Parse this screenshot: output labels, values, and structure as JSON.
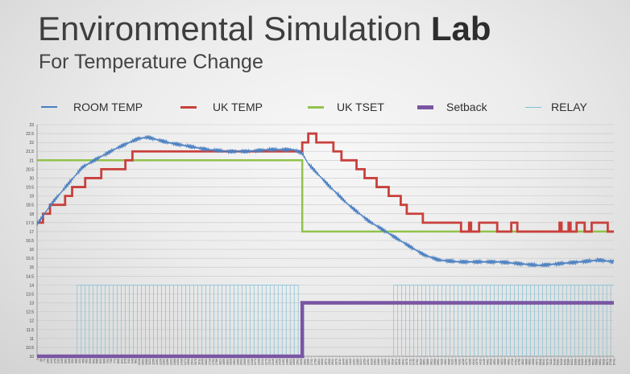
{
  "header": {
    "title_main": "Environmental Simulation ",
    "title_bold": "Lab",
    "subtitle": "For Temperature Change"
  },
  "colors": {
    "room_temp": "#4a7fc1",
    "uk_temp": "#c8403c",
    "uk_tset": "#92c24b",
    "setback": "#7a55a3",
    "relay": "#7fbfd4",
    "grid": "#c7c7c7",
    "axis": "#8a8a8a",
    "tick_text": "#3a3a3a"
  },
  "legend": [
    {
      "label": "ROOM TEMP",
      "series": "room_temp"
    },
    {
      "label": "UK TEMP",
      "series": "uk_temp"
    },
    {
      "label": "UK TSET",
      "series": "uk_tset"
    },
    {
      "label": "Setback",
      "series": "setback"
    },
    {
      "label": "RELAY",
      "series": "relay"
    }
  ],
  "chart_data": {
    "type": "line",
    "title": "Environmental Simulation Lab",
    "subtitle": "For Temperature Change",
    "xlim": [
      1,
      5741
    ],
    "ylim": [
      10,
      23
    ],
    "grid": true,
    "legend_position": "top",
    "y_ticks": [
      "10",
      "10.5",
      "11",
      "11.5",
      "12",
      "12.5",
      "13",
      "13.5",
      "14",
      "14.5",
      "15",
      "15.5",
      "16",
      "16.5",
      "17",
      "17.5",
      "18",
      "18.5",
      "19",
      "19.5",
      "20",
      "20.5",
      "21",
      "21.5",
      "22",
      "22.5",
      "23"
    ],
    "x_ticks": [
      "1",
      "36",
      "71",
      "106",
      "141",
      "176",
      "211",
      "246",
      "281",
      "316",
      "351",
      "386",
      "421",
      "456",
      "491",
      "526",
      "561",
      "596",
      "631",
      "666",
      "701",
      "736",
      "771",
      "806",
      "841",
      "876",
      "911",
      "946",
      "981",
      "1016",
      "1051",
      "1086",
      "1121",
      "1156",
      "1191",
      "1226",
      "1261",
      "1296",
      "1331",
      "1366",
      "1401",
      "1436",
      "1471",
      "1506",
      "1541",
      "1576",
      "1611",
      "1646",
      "1681",
      "1716",
      "1751",
      "1786",
      "1821",
      "1856",
      "1891",
      "1926",
      "1961",
      "1996",
      "2031",
      "2066",
      "2101",
      "2136",
      "2171",
      "2206",
      "2241",
      "2276",
      "2311",
      "2346",
      "2381",
      "2416",
      "2451",
      "2486",
      "2521",
      "2556",
      "2591",
      "2626",
      "2661",
      "2696",
      "2731",
      "2766",
      "2801",
      "2836",
      "2871",
      "2906",
      "2941",
      "2976",
      "3011",
      "3046",
      "3081",
      "3116",
      "3151",
      "3186",
      "3221",
      "3256",
      "3291",
      "3326",
      "3361",
      "3396",
      "3431",
      "3466",
      "3501",
      "3536",
      "3571",
      "3606",
      "3641",
      "3676",
      "3711",
      "3746",
      "3781",
      "3816",
      "3851",
      "3886",
      "3921",
      "3956",
      "3991",
      "4026",
      "4061",
      "4096",
      "4131",
      "4166",
      "4201",
      "4236",
      "4271",
      "4306",
      "4341",
      "4376",
      "4411",
      "4446",
      "4481",
      "4516",
      "4551",
      "4586",
      "4621",
      "4656",
      "4691",
      "4726",
      "4761",
      "4796",
      "4831",
      "4866",
      "4901",
      "4936",
      "4971",
      "5006",
      "5041",
      "5076",
      "5111",
      "5146",
      "5181",
      "5216",
      "5251",
      "5286",
      "5321",
      "5356",
      "5391",
      "5426",
      "5461",
      "5496",
      "5531",
      "5566",
      "5601",
      "5636",
      "5671",
      "5706",
      "5741"
    ],
    "series": [
      {
        "name": "ROOM TEMP",
        "key": "room_temp",
        "style": "line",
        "noise": 0.12,
        "x": [
          1,
          50,
          150,
          300,
          450,
          600,
          800,
          1000,
          1100,
          1300,
          1500,
          1700,
          1900,
          2100,
          2300,
          2550,
          2640,
          2700,
          2900,
          3100,
          3300,
          3500,
          3700,
          3850,
          4000,
          4200,
          4400,
          4600,
          4800,
          5000,
          5200,
          5400,
          5600,
          5741
        ],
        "y": [
          17.4,
          17.8,
          18.6,
          19.6,
          20.6,
          21.1,
          21.7,
          22.2,
          22.3,
          22.0,
          21.8,
          21.6,
          21.5,
          21.5,
          21.6,
          21.6,
          21.4,
          20.8,
          19.6,
          18.5,
          17.6,
          16.9,
          16.2,
          15.7,
          15.4,
          15.3,
          15.3,
          15.3,
          15.2,
          15.1,
          15.2,
          15.3,
          15.4,
          15.3
        ]
      },
      {
        "name": "UK TEMP",
        "key": "uk_temp",
        "style": "step",
        "x": [
          1,
          60,
          130,
          200,
          280,
          350,
          480,
          640,
          700,
          880,
          950,
          1050,
          1120,
          2640,
          2700,
          2780,
          2950,
          3030,
          3180,
          3260,
          3380,
          3500,
          3620,
          3680,
          3750,
          3840,
          4200,
          4220,
          4300,
          4320,
          4400,
          4560,
          4580,
          4720,
          4780,
          4800,
          5200,
          5220,
          5290,
          5310,
          5370,
          5430,
          5450,
          5520,
          5530,
          5680,
          5741
        ],
        "y": [
          17.5,
          18,
          18.5,
          18.5,
          19,
          19.5,
          20,
          20.5,
          20.5,
          21,
          21.5,
          21.5,
          21.5,
          22,
          22.5,
          22,
          21.5,
          21,
          20.5,
          20,
          19.5,
          19,
          18.5,
          18,
          18,
          17.5,
          17.5,
          17,
          17.5,
          17,
          17.5,
          17.5,
          17,
          17.5,
          17,
          17,
          17.5,
          17,
          17.5,
          17,
          17.5,
          17.5,
          17,
          17.5,
          17.5,
          17,
          17
        ]
      },
      {
        "name": "UK TSET",
        "key": "uk_tset",
        "style": "step",
        "x": [
          1,
          2630,
          2640,
          5741
        ],
        "y": [
          21,
          21,
          17,
          17
        ]
      },
      {
        "name": "Setback",
        "key": "setback",
        "style": "step",
        "x": [
          1,
          2630,
          2640,
          5741
        ],
        "y": [
          10,
          10,
          13,
          13
        ]
      },
      {
        "name": "RELAY",
        "key": "relay",
        "style": "pulses",
        "high": 14,
        "low": 10,
        "on_ranges": [
          [
            400,
            2600
          ],
          [
            3550,
            5741
          ]
        ],
        "pulse_period": 40
      }
    ]
  }
}
